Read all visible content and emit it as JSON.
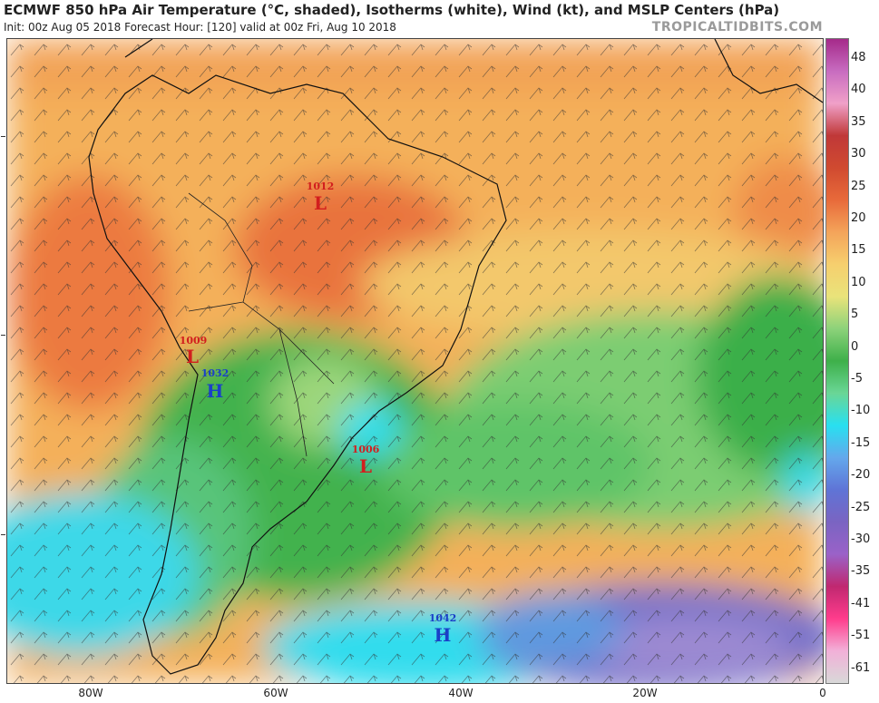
{
  "header": {
    "title": "ECMWF 850 hPa Air Temperature (°C, shaded), Isotherms (white), Wind (kt), and MSLP Centers (hPa)",
    "subtitle": "Init: 00z Aug 05 2018   Forecast Hour: [120]   valid at 00z Fri, Aug 10 2018",
    "source": "TROPICALTIDBITS.COM"
  },
  "colorbar": {
    "labels": [
      "48",
      "40",
      "35",
      "30",
      "25",
      "20",
      "15",
      "10",
      "5",
      "0",
      "-5",
      "-10",
      "-15",
      "-20",
      "-25",
      "-30",
      "-35",
      "-41",
      "-51",
      "-61"
    ],
    "colors": [
      "#a52a8a",
      "#c86cc0",
      "#f0a0c8",
      "#c03838",
      "#d04a30",
      "#e86a3a",
      "#f4a45a",
      "#f6cf6e",
      "#e9e37a",
      "#8cd27a",
      "#3eb04a",
      "#6ad696",
      "#28e0f0",
      "#64a8ec",
      "#5f74d6",
      "#7a64c2",
      "#9a62c8",
      "#c02870",
      "#ff3c8c",
      "#f2b0d8",
      "#d8d8d8"
    ]
  },
  "pressure_centers": [
    {
      "value": "1012",
      "letter": "L",
      "type": "low"
    },
    {
      "value": "1009",
      "letter": "L",
      "type": "low"
    },
    {
      "value": "1032",
      "letter": "H",
      "type": "high"
    },
    {
      "value": "1006",
      "letter": "L",
      "type": "low"
    },
    {
      "value": "1042",
      "letter": "H",
      "type": "high"
    }
  ],
  "x_axis": {
    "labels": [
      "80W",
      "60W",
      "40W",
      "20W",
      "0"
    ]
  },
  "colors": {
    "low": "#d21e1e",
    "high": "#1a40c8"
  }
}
